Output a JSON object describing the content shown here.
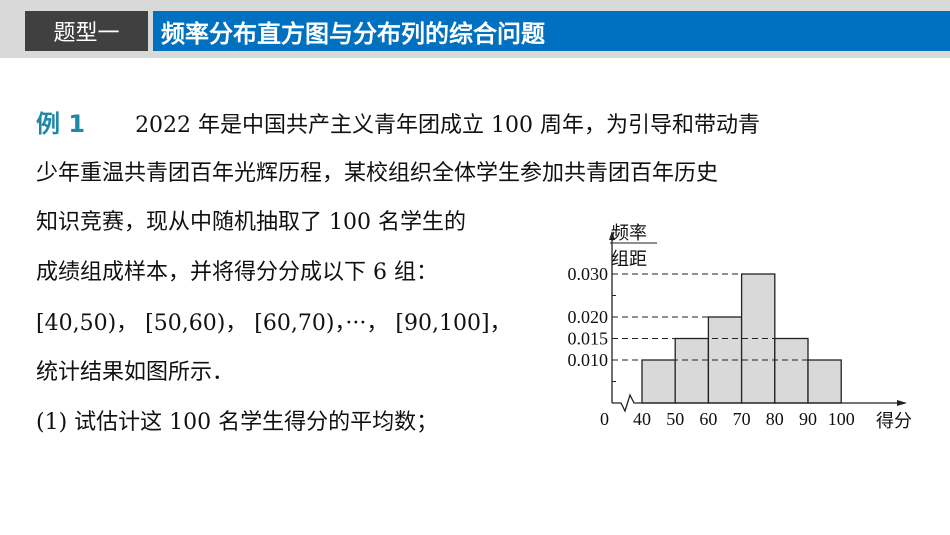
{
  "header": {
    "tag": "题型一",
    "title": "频率分布直方图与分布列的综合问题"
  },
  "problem": {
    "label": "例 1",
    "lines": [
      "2022 年是中国共产主义青年团成立 100 周年，为引导和带动青",
      "少年重温共青团百年光辉历程，某校组织全体学生参加共青团百年历史",
      "知识竞赛，现从中随机抽取了 100 名学生的",
      "成绩组成样本，并将得分分成以下 6 组：",
      "[40,50)，  [50,60)，  [60,70)，···，  [90,100]，",
      "统计结果如图所示．",
      "(1) 试估计这 100 名学生得分的平均数；"
    ]
  },
  "chart_data": {
    "type": "bar",
    "subtype": "histogram",
    "ylabel_top": "频率",
    "ylabel_bottom": "组距",
    "xlabel": "得分",
    "origin_label": "0",
    "x_ticks": [
      "40",
      "50",
      "60",
      "70",
      "80",
      "90",
      "100"
    ],
    "y_ticks": [
      "0.010",
      "0.015",
      "0.020",
      "0.030"
    ],
    "bins": [
      [
        40,
        50
      ],
      [
        50,
        60
      ],
      [
        60,
        70
      ],
      [
        70,
        80
      ],
      [
        80,
        90
      ],
      [
        90,
        100
      ]
    ],
    "values": [
      0.01,
      0.015,
      0.02,
      0.03,
      0.015,
      0.01
    ],
    "bar_color": "#d9d9d9",
    "ylim": [
      0,
      0.035
    ]
  }
}
